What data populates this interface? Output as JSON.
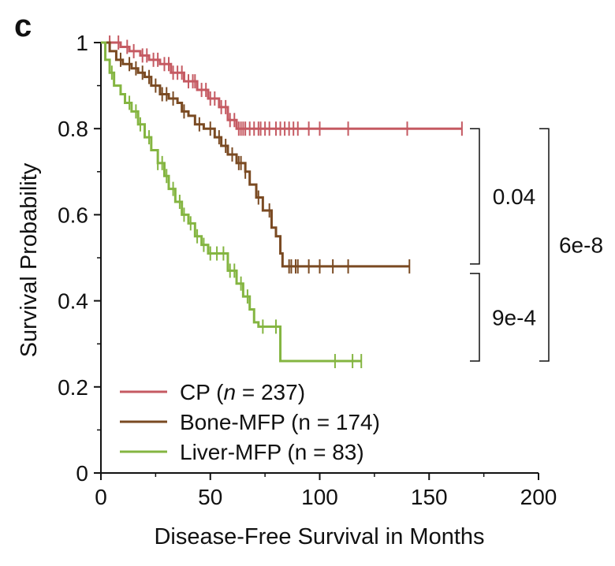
{
  "panel_label": "c",
  "chart_data": {
    "type": "line",
    "subtype": "kaplan-meier",
    "xlabel": "Disease-Free Survival in Months",
    "ylabel": "Survival Probability",
    "xlim": [
      0,
      200
    ],
    "ylim": [
      0,
      1
    ],
    "x_ticks": [
      0,
      50,
      100,
      150,
      200
    ],
    "x_tick_labels": [
      "0",
      "50",
      "100",
      "150",
      "200"
    ],
    "y_ticks": [
      0,
      0.2,
      0.4,
      0.6,
      0.8,
      1
    ],
    "y_tick_labels": [
      "0",
      "0.2",
      "0.4",
      "0.6",
      "0.8",
      "1"
    ],
    "grid": false,
    "legend_position": "bottom-left",
    "series": [
      {
        "name": "CP (n = 237)",
        "legend_prefix": "CP (",
        "legend_italic": "n",
        "legend_suffix": " = 237)",
        "color": "#c55a62",
        "steps": [
          [
            0,
            1
          ],
          [
            9,
            0.99
          ],
          [
            13,
            0.98
          ],
          [
            18,
            0.97
          ],
          [
            22,
            0.96
          ],
          [
            27,
            0.95
          ],
          [
            32,
            0.93
          ],
          [
            38,
            0.91
          ],
          [
            44,
            0.89
          ],
          [
            49,
            0.87
          ],
          [
            54,
            0.85
          ],
          [
            58,
            0.82
          ],
          [
            62,
            0.8
          ],
          [
            165,
            0.8
          ]
        ],
        "censor_times": [
          4,
          8,
          12,
          15,
          19,
          21,
          24,
          26,
          29,
          31,
          33,
          35,
          37,
          40,
          42,
          43,
          46,
          48,
          50,
          52,
          55,
          57,
          59,
          61,
          63,
          64,
          65,
          66,
          68,
          70,
          72,
          73,
          75,
          77,
          80,
          82,
          84,
          86,
          88,
          90,
          95,
          100,
          113,
          140,
          165
        ]
      },
      {
        "name": "Bone-MFP (n = 174)",
        "color": "#7a4a22",
        "steps": [
          [
            0,
            1
          ],
          [
            4,
            0.98
          ],
          [
            7,
            0.96
          ],
          [
            10,
            0.95
          ],
          [
            14,
            0.94
          ],
          [
            17,
            0.93
          ],
          [
            20,
            0.92
          ],
          [
            23,
            0.9
          ],
          [
            27,
            0.88
          ],
          [
            31,
            0.87
          ],
          [
            35,
            0.86
          ],
          [
            37,
            0.84
          ],
          [
            40,
            0.83
          ],
          [
            43,
            0.81
          ],
          [
            47,
            0.8
          ],
          [
            52,
            0.78
          ],
          [
            55,
            0.76
          ],
          [
            58,
            0.74
          ],
          [
            62,
            0.72
          ],
          [
            66,
            0.7
          ],
          [
            68,
            0.67
          ],
          [
            71,
            0.64
          ],
          [
            74,
            0.61
          ],
          [
            78,
            0.57
          ],
          [
            80,
            0.55
          ],
          [
            82,
            0.51
          ],
          [
            83,
            0.48
          ],
          [
            141,
            0.48
          ]
        ],
        "censor_times": [
          9,
          13,
          16,
          19,
          22,
          25,
          28,
          30,
          33,
          38,
          45,
          50,
          54,
          57,
          60,
          63,
          64,
          66,
          72,
          77,
          86,
          87,
          89,
          90,
          95,
          100,
          106,
          113,
          141
        ]
      },
      {
        "name": "Liver-MFP (n = 83)",
        "color": "#84b541",
        "steps": [
          [
            0,
            1
          ],
          [
            2,
            0.96
          ],
          [
            4,
            0.93
          ],
          [
            6,
            0.9
          ],
          [
            9,
            0.88
          ],
          [
            11,
            0.86
          ],
          [
            14,
            0.84
          ],
          [
            17,
            0.81
          ],
          [
            20,
            0.78
          ],
          [
            23,
            0.75
          ],
          [
            26,
            0.72
          ],
          [
            29,
            0.69
          ],
          [
            31,
            0.66
          ],
          [
            34,
            0.63
          ],
          [
            37,
            0.6
          ],
          [
            40,
            0.58
          ],
          [
            43,
            0.55
          ],
          [
            46,
            0.53
          ],
          [
            49,
            0.51
          ],
          [
            58,
            0.47
          ],
          [
            62,
            0.44
          ],
          [
            65,
            0.41
          ],
          [
            68,
            0.38
          ],
          [
            70,
            0.35
          ],
          [
            72,
            0.34
          ],
          [
            82,
            0.26
          ],
          [
            119,
            0.26
          ]
        ],
        "censor_times": [
          5,
          13,
          16,
          18,
          22,
          26,
          28,
          30,
          33,
          36,
          38,
          41,
          44,
          47,
          50,
          53,
          56,
          59,
          61,
          64,
          67,
          74,
          80,
          107,
          115,
          119
        ]
      }
    ],
    "annotations": [
      {
        "label": "0.04",
        "from": "CP (n = 237)",
        "to": "Bone-MFP (n = 174)"
      },
      {
        "label": "9e-4",
        "from": "Bone-MFP (n = 174)",
        "to": "Liver-MFP (n = 83)"
      },
      {
        "label": "6e-8",
        "from": "CP (n = 237)",
        "to": "Liver-MFP (n = 83)"
      }
    ]
  }
}
